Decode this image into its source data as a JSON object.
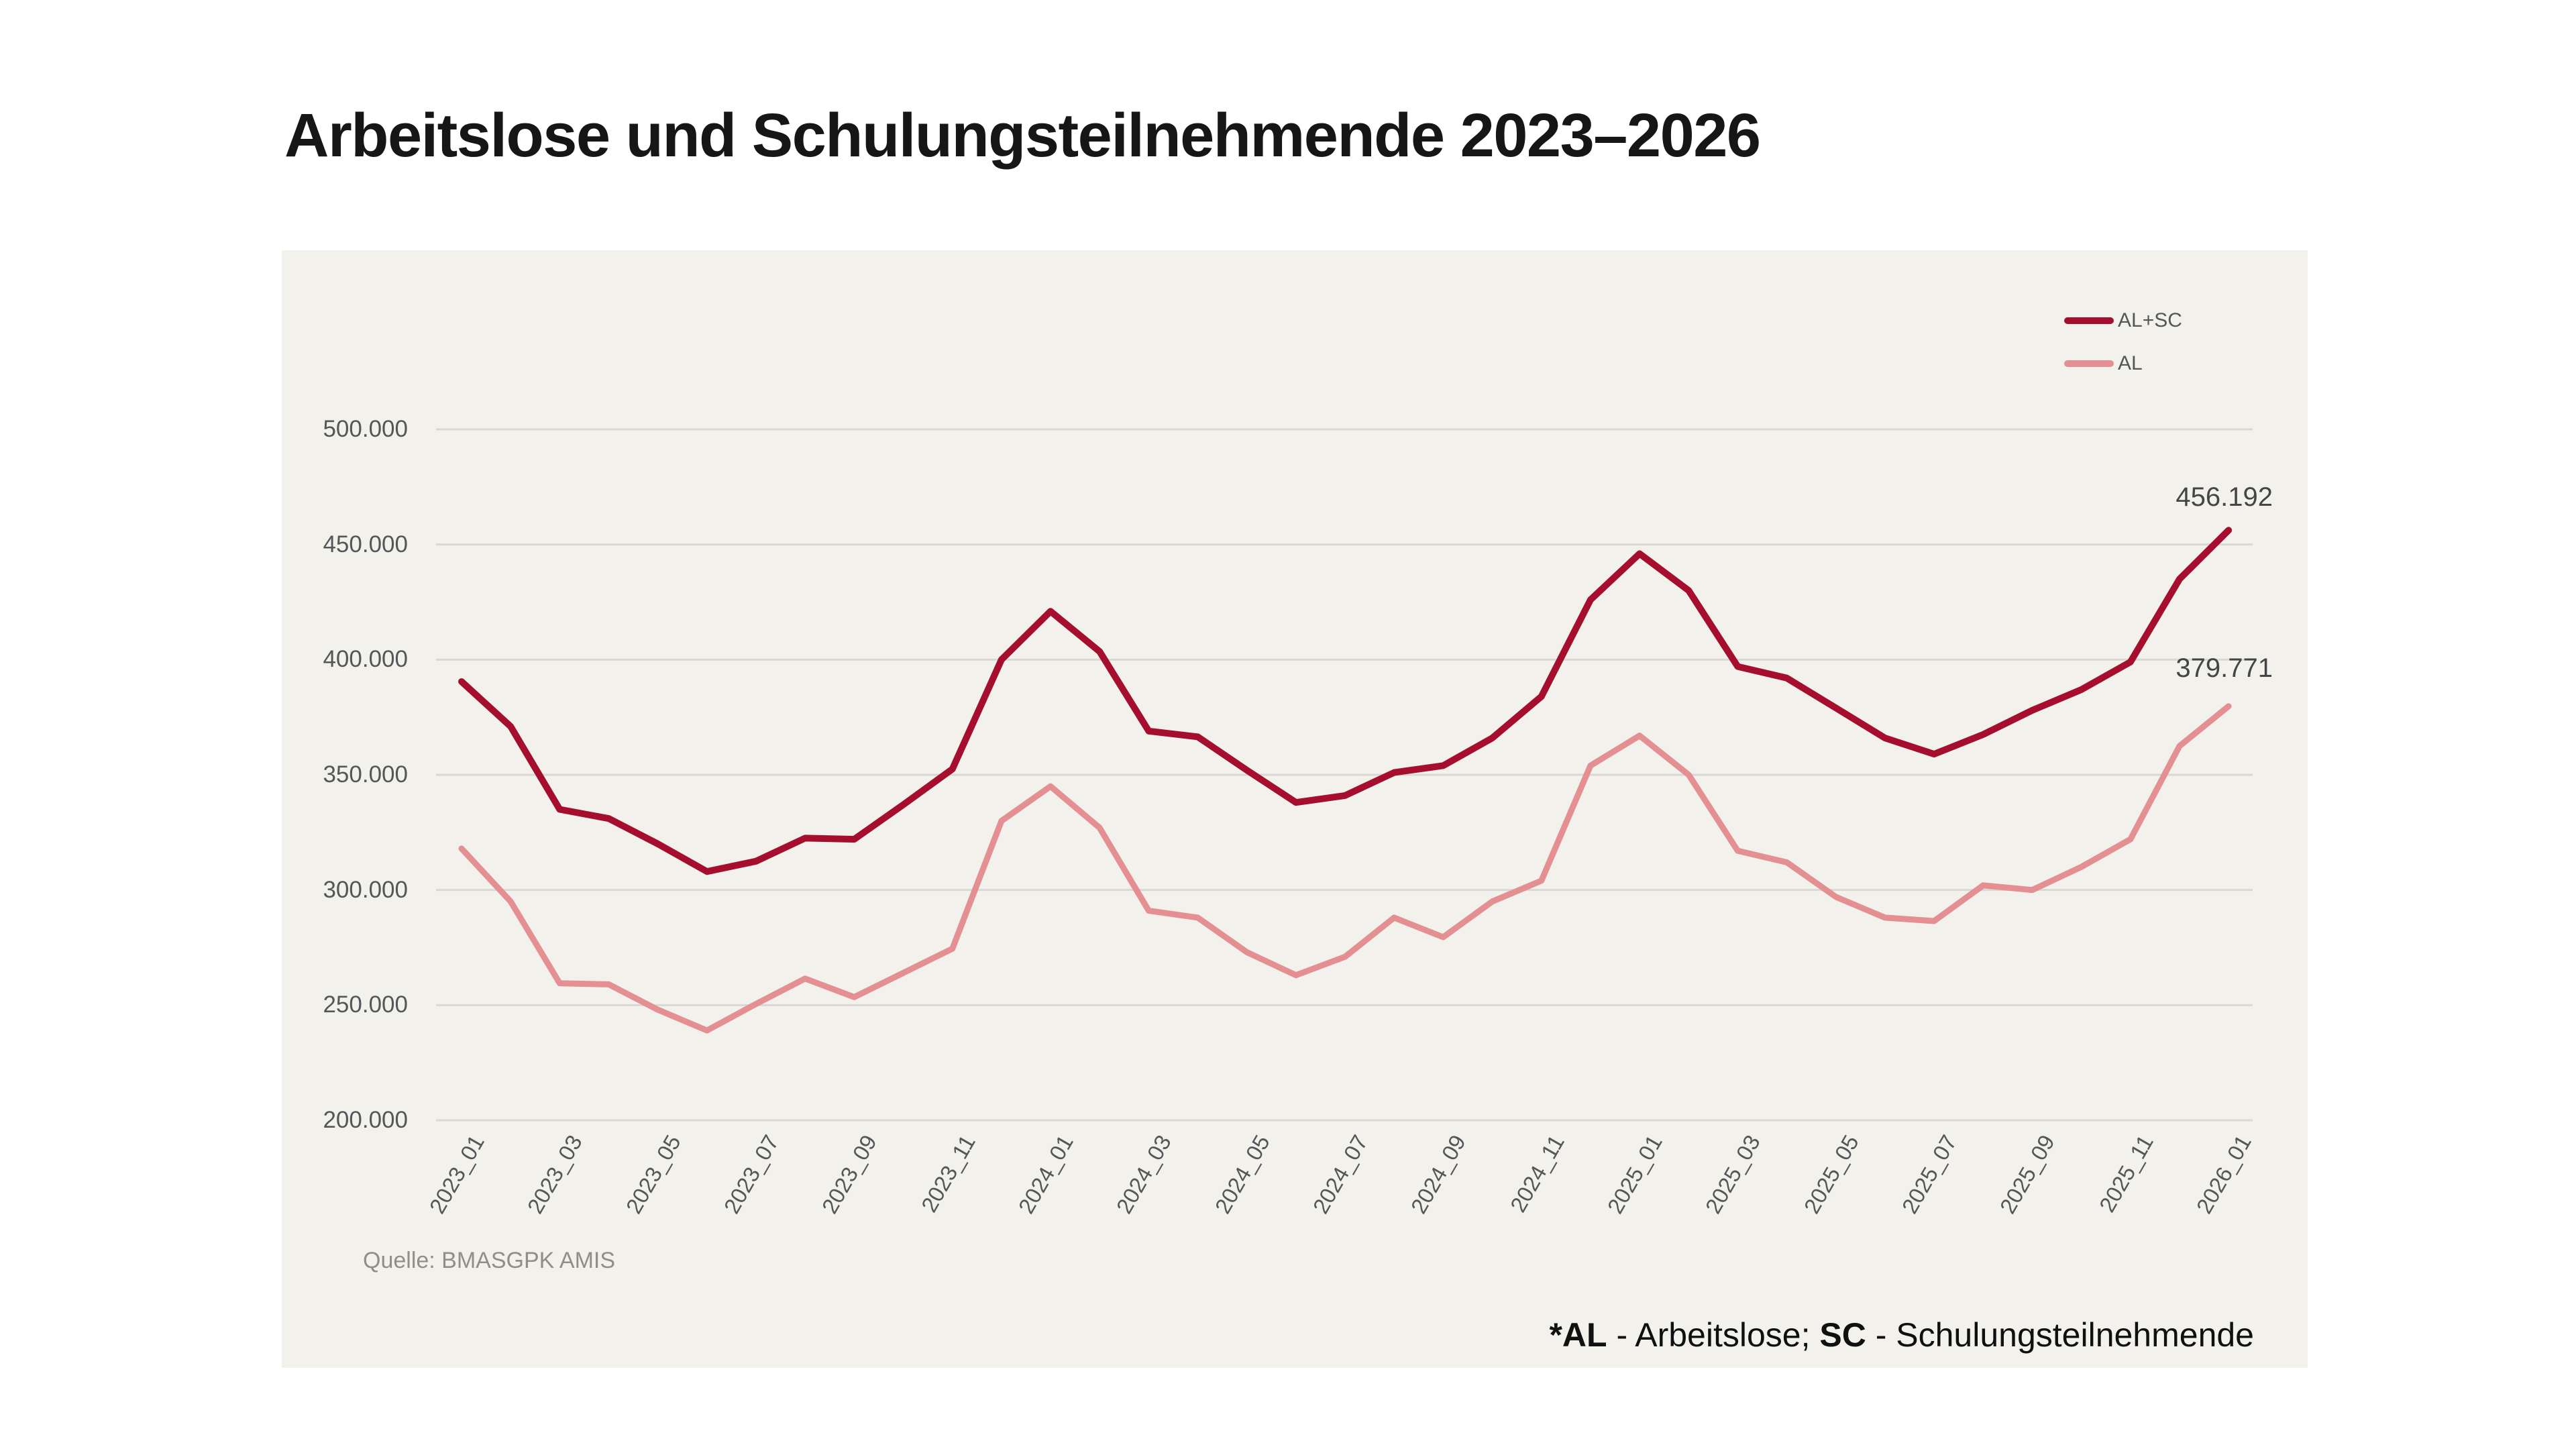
{
  "title": "Arbeitslose und Schulungsteilnehmende 2023–2026",
  "source": "Quelle: BMASGPK AMIS",
  "footnote": {
    "al_abbr": "*AL",
    "al_text": " - Arbeitslose; ",
    "sc_abbr": "SC",
    "sc_text": " - Schulungsteilnehmende"
  },
  "annotations": {
    "al_sc_end": "456.192",
    "al_end": "379.771"
  },
  "legend": {
    "items": [
      {
        "label": "AL+SC",
        "color": "#A50F2D"
      },
      {
        "label": "AL",
        "color": "#E49092"
      }
    ]
  },
  "colors": {
    "page_background": "#FFFFFF",
    "panel_background": "#F3F1EC",
    "gridline": "#DAD8D3",
    "axis_text": "#55565A",
    "annotation_text": "#454548",
    "al_sc_line": "#A50F2D",
    "al_line": "#E49092"
  },
  "chart_data": {
    "type": "line",
    "title": "Arbeitslose und Schulungsteilnehmende 2023–2026",
    "xlabel": "",
    "ylabel": "",
    "ylim": [
      200000,
      500000
    ],
    "ytick_step": 50000,
    "grid": "horizontal",
    "legend_position": "top-right",
    "x_tick_every": 2,
    "x_labels": [
      "2023_01",
      "2023_02",
      "2023_03",
      "2023_04",
      "2023_05",
      "2023_06",
      "2023_07",
      "2023_08",
      "2023_09",
      "2023_10",
      "2023_11",
      "2023_12",
      "2024_01",
      "2024_02",
      "2024_03",
      "2024_04",
      "2024_05",
      "2024_06",
      "2024_07",
      "2024_08",
      "2024_09",
      "2024_10",
      "2024_11",
      "2024_12",
      "2025_01",
      "2025_02",
      "2025_03",
      "2025_04",
      "2025_05",
      "2025_06",
      "2025_07",
      "2025_08",
      "2025_09",
      "2025_10",
      "2025_11",
      "2025_12",
      "2026_01"
    ],
    "y_ticks": [
      {
        "value": 500000,
        "label": "500.000"
      },
      {
        "value": 450000,
        "label": "450.000"
      },
      {
        "value": 400000,
        "label": "400.000"
      },
      {
        "value": 350000,
        "label": "350.000"
      },
      {
        "value": 300000,
        "label": "300.000"
      },
      {
        "value": 250000,
        "label": "250.000"
      },
      {
        "value": 200000,
        "label": "200.000"
      }
    ],
    "series": [
      {
        "name": "AL+SC",
        "color": "#A50F2D",
        "stroke_width": 10,
        "values": [
          390500,
          371000,
          335000,
          331000,
          320000,
          308000,
          312500,
          322500,
          322000,
          337000,
          352500,
          400000,
          421000,
          403500,
          369000,
          366500,
          352000,
          338000,
          341000,
          351000,
          354000,
          366000,
          384000,
          426000,
          446000,
          430000,
          397000,
          392000,
          379000,
          366000,
          359000,
          367500,
          378000,
          387000,
          399000,
          435000,
          456192
        ]
      },
      {
        "name": "AL",
        "color": "#E49092",
        "stroke_width": 9,
        "values": [
          318000,
          295000,
          259500,
          259000,
          248000,
          239000,
          250500,
          261500,
          253500,
          264000,
          274500,
          330000,
          345000,
          327000,
          291000,
          288000,
          273000,
          263000,
          271000,
          288000,
          279500,
          295000,
          304000,
          354000,
          367000,
          350000,
          317000,
          312000,
          297000,
          288000,
          286500,
          302000,
          300000,
          310000,
          322000,
          362500,
          379771
        ]
      }
    ],
    "end_labels": {
      "AL+SC": "456.192",
      "AL": "379.771"
    }
  }
}
